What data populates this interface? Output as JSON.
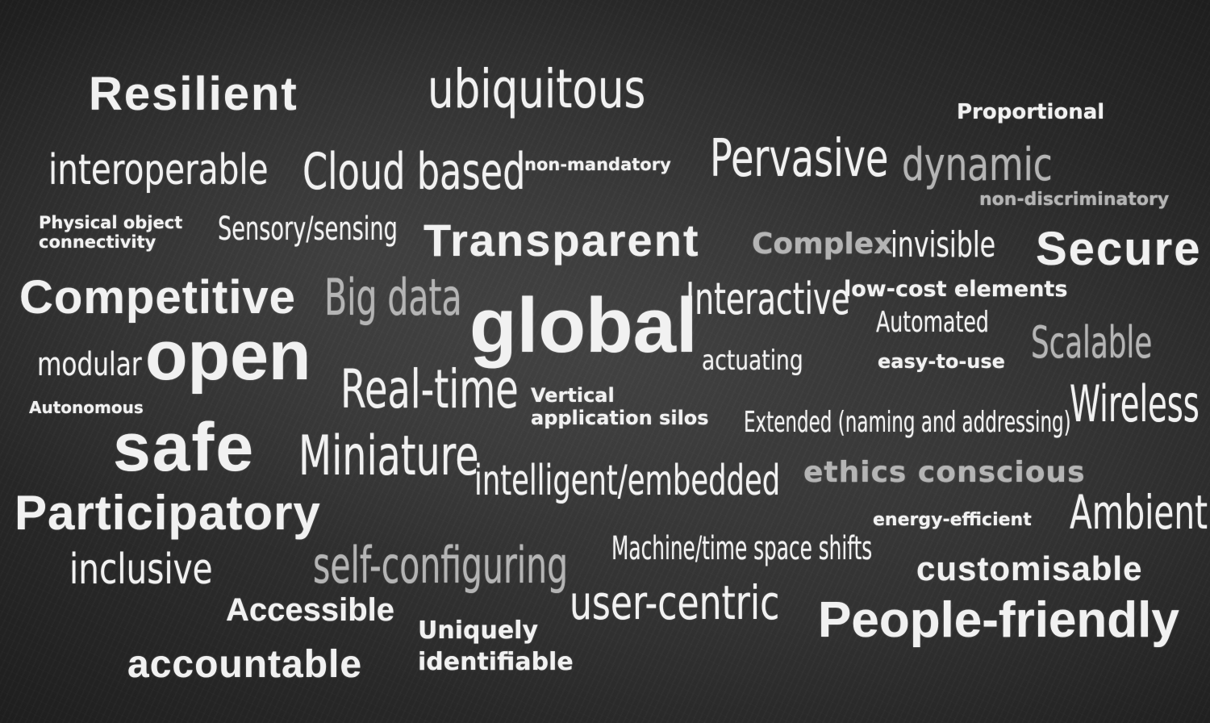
{
  "words": {
    "resilient": "Resilient",
    "ubiquitous": "ubiquitous",
    "proportional": "Proportional",
    "interoperable": "interoperable",
    "cloud_based": "Cloud based",
    "non_mandatory": "non-mandatory",
    "pervasive": "Pervasive",
    "dynamic": "dynamic",
    "non_discriminatory": "non-discriminatory",
    "physical_object_line1": "Physical object",
    "physical_object_line2": "connectivity",
    "sensory_sensing": "Sensory/sensing",
    "transparent": "Transparent",
    "complex": "Complex",
    "invisible": "invisible",
    "secure": "Secure",
    "competitive": "Competitive",
    "big_data": "Big data",
    "global": "global",
    "interactive": "Interactive",
    "low_cost_elements": "low-cost elements",
    "automated": "Automated",
    "modular": "modular",
    "open": "open",
    "actuating": "actuating",
    "easy_to_use": "easy-to-use",
    "scalable": "Scalable",
    "autonomous": "Autonomous",
    "real_time": "Real-time",
    "vertical_line1": "Vertical",
    "vertical_line2": "application silos",
    "wireless": "Wireless",
    "extended": "Extended (naming and addressing)",
    "safe": "safe",
    "miniature": "Miniature",
    "intelligent_embedded": "intelligent/embedded",
    "ethics_conscious": "ethics conscious",
    "participatory": "Participatory",
    "energy_efficient": "energy-efficient",
    "ambient": "Ambient",
    "inclusive": "inclusive",
    "self_configuring": "self-configuring",
    "machine_time": "Machine/time space shifts",
    "customisable": "customisable",
    "accessible": "Accessible",
    "user_centric": "user-centric",
    "people_friendly": "People-friendly",
    "uniquely_line1": "Uniquely",
    "uniquely_line2": "identifiable",
    "accountable": "accountable"
  },
  "colors": {
    "board": "#2b2b2b",
    "chalk": "#f1f1f1",
    "chalk_dim": "#b4b4b4"
  }
}
